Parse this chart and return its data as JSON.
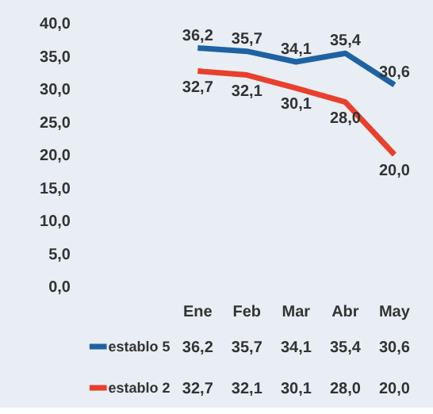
{
  "chart_data": {
    "type": "line",
    "categories": [
      "Ene",
      "Feb",
      "Mar",
      "Abr",
      "May"
    ],
    "series": [
      {
        "name": "establo 5",
        "color": "#1f62a3",
        "values": [
          36.2,
          35.7,
          34.1,
          35.4,
          30.6
        ],
        "value_labels": [
          "36,2",
          "35,7",
          "34,1",
          "35,4",
          "30,6"
        ]
      },
      {
        "name": "establo 2",
        "color": "#e8402c",
        "values": [
          32.7,
          32.1,
          30.1,
          28.0,
          20.0
        ],
        "value_labels": [
          "32,7",
          "32,1",
          "30,1",
          "28,0",
          "20,0"
        ]
      }
    ],
    "ylim": [
      0,
      40
    ],
    "yticks": [
      {
        "value": 0,
        "label": "0,0"
      },
      {
        "value": 5,
        "label": "5,0"
      },
      {
        "value": 10,
        "label": "10,0"
      },
      {
        "value": 15,
        "label": "15,0"
      },
      {
        "value": 20,
        "label": "20,0"
      },
      {
        "value": 25,
        "label": "25,0"
      },
      {
        "value": 30,
        "label": "30,0"
      },
      {
        "value": 35,
        "label": "35,0"
      },
      {
        "value": 40,
        "label": "40,0"
      }
    ],
    "legend": "bottom"
  }
}
